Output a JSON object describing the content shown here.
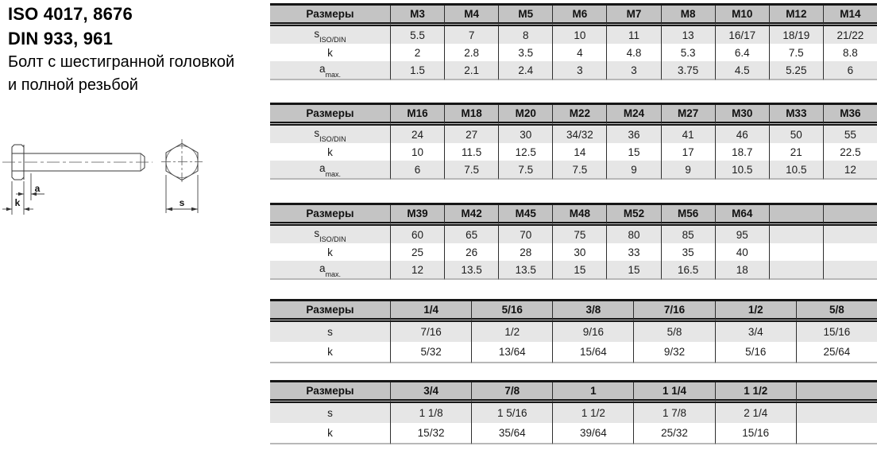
{
  "header": {
    "iso": "ISO 4017, 8676",
    "din": "DIN 933, 961",
    "desc1": "Болт с шестигранной головкой",
    "desc2": "и полной резьбой"
  },
  "diagram": {
    "labels": {
      "a": "a",
      "k": "k",
      "s": "s"
    }
  },
  "colors": {
    "header_bg": "#c4c4c4",
    "shade_bg": "#e6e6e6",
    "line": "#161616"
  },
  "tables": [
    {
      "unit": "metric",
      "header": [
        "Размеры",
        "M3",
        "M4",
        "M5",
        "M6",
        "M7",
        "M8",
        "M10",
        "M12",
        "M14"
      ],
      "rows": [
        {
          "label": "s",
          "label_sub": "ISO/DIN",
          "values": [
            "5.5",
            "7",
            "8",
            "10",
            "11",
            "13",
            "16/17",
            "18/19",
            "21/22"
          ]
        },
        {
          "label": "k",
          "label_sub": "",
          "values": [
            "2",
            "2.8",
            "3.5",
            "4",
            "4.8",
            "5.3",
            "6.4",
            "7.5",
            "8.8"
          ]
        },
        {
          "label": "a",
          "label_sub": "max.",
          "values": [
            "1.5",
            "2.1",
            "2.4",
            "3",
            "3",
            "3.75",
            "4.5",
            "5.25",
            "6"
          ]
        }
      ]
    },
    {
      "unit": "metric",
      "header": [
        "Размеры",
        "M16",
        "M18",
        "M20",
        "M22",
        "M24",
        "M27",
        "M30",
        "M33",
        "M36"
      ],
      "rows": [
        {
          "label": "s",
          "label_sub": "ISO/DIN",
          "values": [
            "24",
            "27",
            "30",
            "34/32",
            "36",
            "41",
            "46",
            "50",
            "55"
          ]
        },
        {
          "label": "k",
          "label_sub": "",
          "values": [
            "10",
            "11.5",
            "12.5",
            "14",
            "15",
            "17",
            "18.7",
            "21",
            "22.5"
          ]
        },
        {
          "label": "a",
          "label_sub": "max.",
          "values": [
            "6",
            "7.5",
            "7.5",
            "7.5",
            "9",
            "9",
            "10.5",
            "10.5",
            "12"
          ]
        }
      ]
    },
    {
      "unit": "metric",
      "header": [
        "Размеры",
        "M39",
        "M42",
        "M45",
        "M48",
        "M52",
        "M56",
        "M64",
        "",
        ""
      ],
      "rows": [
        {
          "label": "s",
          "label_sub": "ISO/DIN",
          "values": [
            "60",
            "65",
            "70",
            "75",
            "80",
            "85",
            "95",
            "",
            ""
          ]
        },
        {
          "label": "k",
          "label_sub": "",
          "values": [
            "25",
            "26",
            "28",
            "30",
            "33",
            "35",
            "40",
            "",
            ""
          ]
        },
        {
          "label": "a",
          "label_sub": "max.",
          "values": [
            "12",
            "13.5",
            "13.5",
            "15",
            "15",
            "16.5",
            "18",
            "",
            ""
          ]
        }
      ]
    },
    {
      "unit": "inch",
      "header": [
        "Размеры",
        "1/4",
        "5/16",
        "3/8",
        "7/16",
        "1/2",
        "5/8"
      ],
      "rows": [
        {
          "label": "s",
          "label_sub": "",
          "values": [
            "7/16",
            "1/2",
            "9/16",
            "5/8",
            "3/4",
            "15/16"
          ]
        },
        {
          "label": "k",
          "label_sub": "",
          "values": [
            "5/32",
            "13/64",
            "15/64",
            "9/32",
            "5/16",
            "25/64"
          ]
        }
      ]
    },
    {
      "unit": "inch",
      "header": [
        "Размеры",
        "3/4",
        "7/8",
        "1",
        "1 1/4",
        "1 1/2",
        ""
      ],
      "rows": [
        {
          "label": "s",
          "label_sub": "",
          "values": [
            "1 1/8",
            "1 5/16",
            "1 1/2",
            "1 7/8",
            "2 1/4",
            ""
          ]
        },
        {
          "label": "k",
          "label_sub": "",
          "values": [
            "15/32",
            "35/64",
            "39/64",
            "25/32",
            "15/16",
            ""
          ]
        }
      ]
    }
  ]
}
